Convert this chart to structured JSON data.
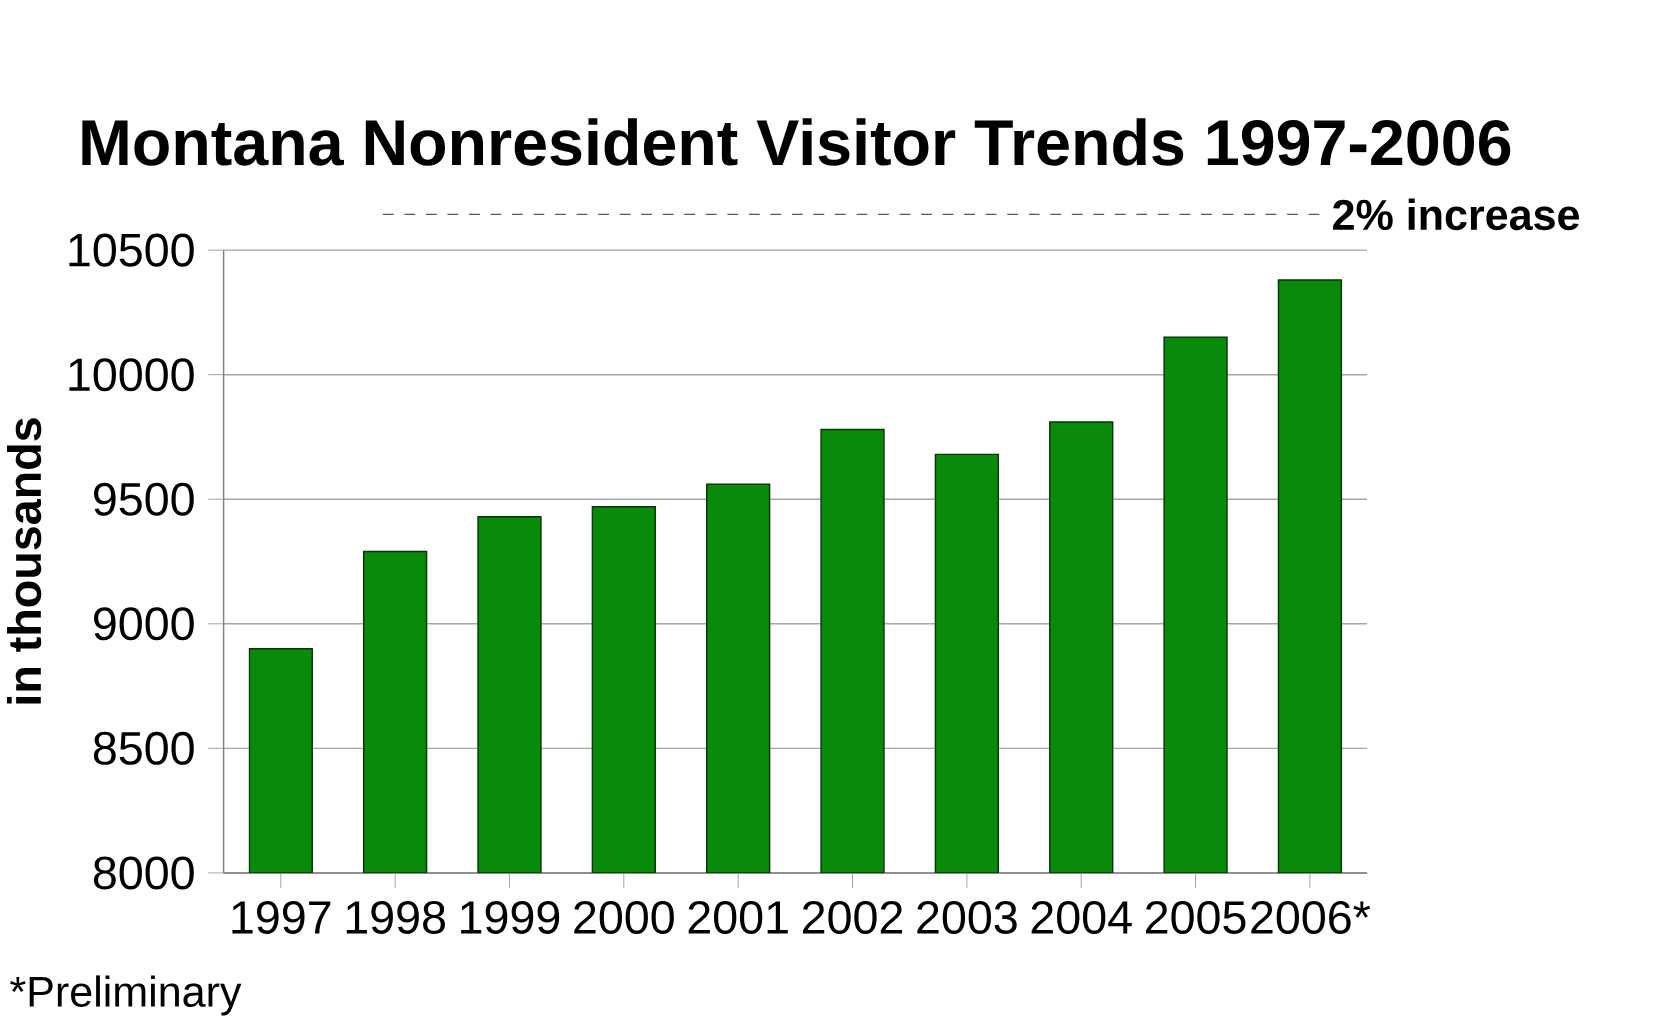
{
  "chart_data": {
    "type": "bar",
    "title": "Montana Nonresident Visitor Trends 1997-2006",
    "ylabel": "in thousands",
    "categories": [
      "1997",
      "1998",
      "1999",
      "2000",
      "2001",
      "2002",
      "2003",
      "2004",
      "2005",
      "2006*"
    ],
    "values": [
      8900,
      9290,
      9430,
      9470,
      9560,
      9780,
      9680,
      9810,
      10150,
      10380
    ],
    "color": "#0a8a0a",
    "ylim": [
      8000,
      10500
    ],
    "yticks": [
      8000,
      8500,
      9000,
      9500,
      10000,
      10500
    ],
    "grid": "y",
    "annotations": [
      "2% increase",
      "*Preliminary"
    ]
  }
}
